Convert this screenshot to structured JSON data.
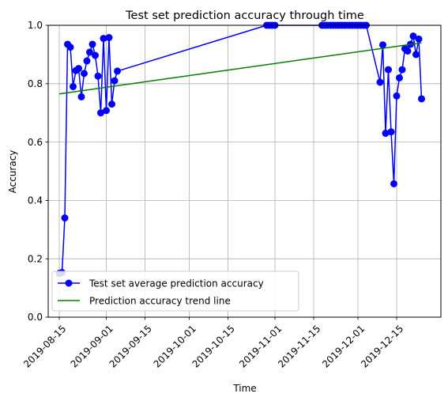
{
  "chart_data": {
    "type": "line",
    "title": "Test set prediction accuracy through time",
    "xlabel": "Time",
    "ylabel": "Accuracy",
    "xlim": [
      "2019-08-11",
      "2019-12-31"
    ],
    "ylim": [
      0,
      1
    ],
    "grid": true,
    "legend_position": "lower-left",
    "x_tick_labels": [
      "2019-08-15",
      "2019-09-01",
      "2019-09-15",
      "2019-10-01",
      "2019-10-15",
      "2019-11-01",
      "2019-11-15",
      "2019-12-01",
      "2019-12-15"
    ],
    "y_tick_labels": [
      "0.0",
      "0.2",
      "0.4",
      "0.6",
      "0.8",
      "1.0"
    ],
    "series": [
      {
        "name": "Test set average prediction accuracy",
        "color": "#0000ff",
        "style": "line-with-markers",
        "x": [
          "2019-08-15",
          "2019-08-16",
          "2019-08-17",
          "2019-08-18",
          "2019-08-19",
          "2019-08-20",
          "2019-08-21",
          "2019-08-22",
          "2019-08-23",
          "2019-08-24",
          "2019-08-25",
          "2019-08-26",
          "2019-08-27",
          "2019-08-28",
          "2019-08-29",
          "2019-08-30",
          "2019-08-31",
          "2019-09-01",
          "2019-09-02",
          "2019-09-03",
          "2019-09-04",
          "2019-09-05",
          "2019-10-29",
          "2019-10-30",
          "2019-10-31",
          "2019-11-01",
          "2019-11-18",
          "2019-11-19",
          "2019-11-20",
          "2019-11-21",
          "2019-11-22",
          "2019-11-23",
          "2019-11-24",
          "2019-11-25",
          "2019-11-26",
          "2019-11-27",
          "2019-11-28",
          "2019-11-29",
          "2019-11-30",
          "2019-12-01",
          "2019-12-02",
          "2019-12-03",
          "2019-12-04",
          "2019-12-09",
          "2019-12-10",
          "2019-12-11",
          "2019-12-12",
          "2019-12-13",
          "2019-12-14",
          "2019-12-15",
          "2019-12-16",
          "2019-12-17",
          "2019-12-18",
          "2019-12-19",
          "2019-12-20",
          "2019-12-21",
          "2019-12-22",
          "2019-12-23",
          "2019-12-24"
        ],
        "values": [
          0.15,
          0.153,
          0.34,
          0.935,
          0.925,
          0.79,
          0.845,
          0.852,
          0.755,
          0.835,
          0.878,
          0.908,
          0.935,
          0.897,
          0.826,
          0.7,
          0.955,
          0.708,
          0.958,
          0.73,
          0.81,
          0.843,
          1.0,
          1.0,
          1.0,
          1.0,
          1.0,
          1.0,
          1.0,
          1.0,
          1.0,
          1.0,
          1.0,
          1.0,
          1.0,
          1.0,
          1.0,
          1.0,
          1.0,
          1.0,
          1.0,
          1.0,
          1.0,
          0.805,
          0.933,
          0.63,
          0.848,
          0.635,
          0.457,
          0.758,
          0.82,
          0.848,
          0.92,
          0.912,
          0.935,
          0.963,
          0.9,
          0.953,
          0.748
        ]
      },
      {
        "name": "Prediction accuracy trend line",
        "color": "#008000",
        "style": "line",
        "x": [
          "2019-08-15",
          "2019-12-24"
        ],
        "values": [
          0.765,
          0.94
        ]
      }
    ]
  }
}
